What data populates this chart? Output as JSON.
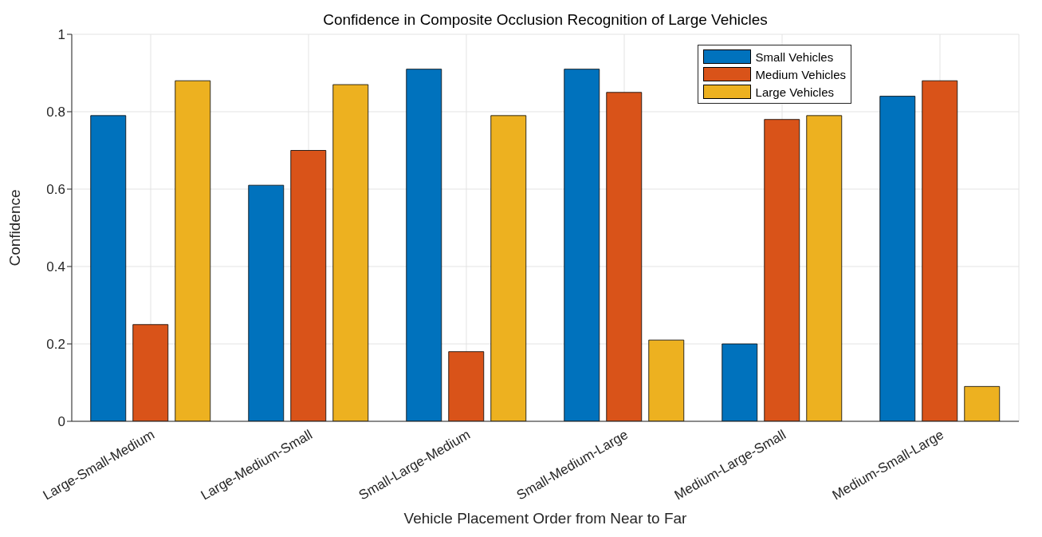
{
  "chart_data": {
    "type": "bar",
    "title": "Confidence in Composite Occlusion Recognition of Large Vehicles",
    "xlabel": "Vehicle Placement Order from Near to Far",
    "ylabel": "Confidence",
    "categories": [
      "Large-Small-Medium",
      "Large-Medium-Small",
      "Small-Large-Medium",
      "Small-Medium-Large",
      "Medium-Large-Small",
      "Medium-Small-Large"
    ],
    "series": [
      {
        "name": "Small Vehicles",
        "color": "#0072bd",
        "values": [
          0.79,
          0.61,
          0.91,
          0.91,
          0.2,
          0.84
        ]
      },
      {
        "name": "Medium Vehicles",
        "color": "#d95319",
        "values": [
          0.25,
          0.7,
          0.18,
          0.85,
          0.78,
          0.88
        ]
      },
      {
        "name": "Large Vehicles",
        "color": "#edb120",
        "values": [
          0.88,
          0.87,
          0.79,
          0.21,
          0.79,
          0.09
        ]
      }
    ],
    "ylim": [
      0,
      1
    ],
    "yticks": [
      0,
      0.2,
      0.4,
      0.6,
      0.8,
      1
    ],
    "grid": true,
    "legend": "top right"
  }
}
